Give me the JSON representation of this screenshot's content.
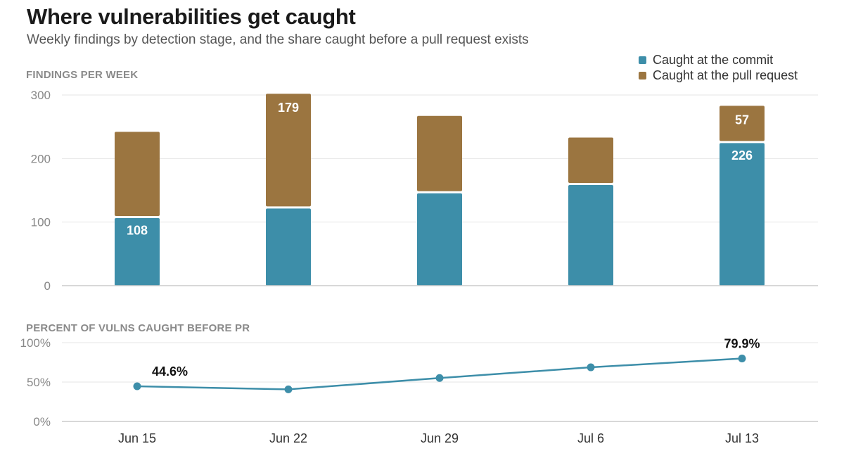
{
  "title": "Where vulnerabilities get caught",
  "subtitle": "Weekly findings by detection stage, and the share caught before a pull request exists",
  "colors": {
    "commit": "#3d8ea9",
    "pull_request": "#9b7540",
    "line": "#3d8ea9",
    "grid": "#e6e6e6",
    "axis": "#cccccc"
  },
  "chart_data": [
    {
      "type": "bar",
      "stacked": true,
      "ylabel": "FINDINGS PER WEEK",
      "categories": [
        "Jun 15",
        "Jun 22",
        "Jun 29",
        "Jul 6",
        "Jul 13"
      ],
      "ylim": [
        0,
        300
      ],
      "yticks": [
        "0",
        "100",
        "200",
        "300"
      ],
      "grid": true,
      "legend_position": "top-right",
      "series": [
        {
          "name": "Caught at the commit",
          "values": [
            108,
            123,
            147,
            160,
            226
          ],
          "labels": [
            "108",
            "",
            "",
            "",
            "226"
          ]
        },
        {
          "name": "Caught at the pull request",
          "values": [
            134,
            179,
            120,
            73,
            57
          ],
          "labels": [
            "",
            "179",
            "",
            "",
            "57"
          ]
        }
      ]
    },
    {
      "type": "line",
      "ylabel": "PERCENT OF VULNS CAUGHT BEFORE PR",
      "categories": [
        "Jun 15",
        "Jun 22",
        "Jun 29",
        "Jul 6",
        "Jul 13"
      ],
      "ylim": [
        0,
        100
      ],
      "yticks": [
        "0%",
        "50%",
        "100%"
      ],
      "grid": true,
      "values": [
        44.6,
        40.7,
        55.1,
        68.7,
        79.9
      ],
      "labels": [
        "44.6%",
        "",
        "",
        "",
        "79.9%"
      ]
    }
  ]
}
